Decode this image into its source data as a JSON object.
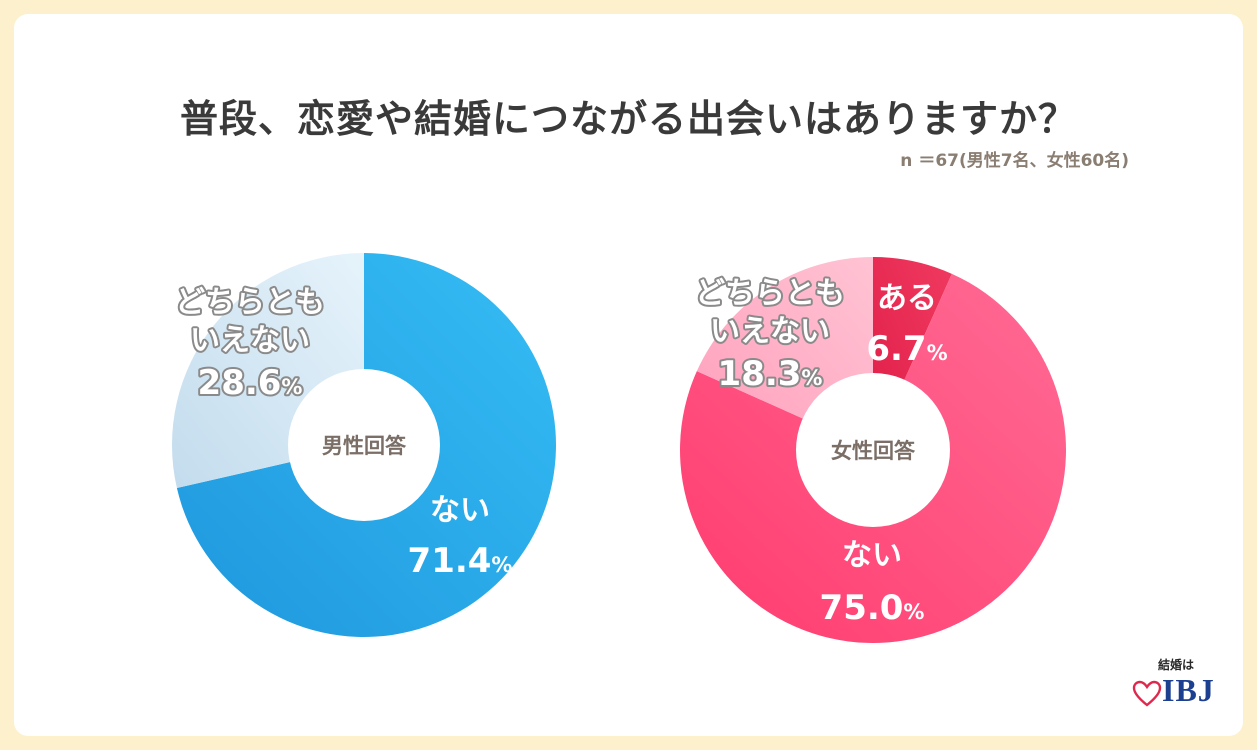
{
  "title": "普段、恋愛や結婚につながる出会いはありますか？",
  "subtitle": "n ＝67(男性7名、女性60名)",
  "logo": {
    "tagline": "結婚は",
    "brand": "IBJ"
  },
  "chart_data": [
    {
      "type": "pie",
      "center_label": "男性回答",
      "slices": [
        {
          "label_lines": [
            "ない"
          ],
          "value": 71.4,
          "value_text": "71.4",
          "color": "#2aa8e8"
        },
        {
          "label_lines": [
            "どちらとも",
            "いえない"
          ],
          "value": 28.6,
          "value_text": "28.6",
          "color": "#cfe6f4"
        }
      ]
    },
    {
      "type": "pie",
      "center_label": "女性回答",
      "slices": [
        {
          "label_lines": [
            "ある"
          ],
          "value": 6.7,
          "value_text": "6.7",
          "color": "#e8264f"
        },
        {
          "label_lines": [
            "ない"
          ],
          "value": 75.0,
          "value_text": "75.0",
          "color": "#ff4f80"
        },
        {
          "label_lines": [
            "どちらとも",
            "いえない"
          ],
          "value": 18.3,
          "value_text": "18.3",
          "color": "#ffb3c8"
        }
      ]
    }
  ],
  "percent_sign": "%"
}
